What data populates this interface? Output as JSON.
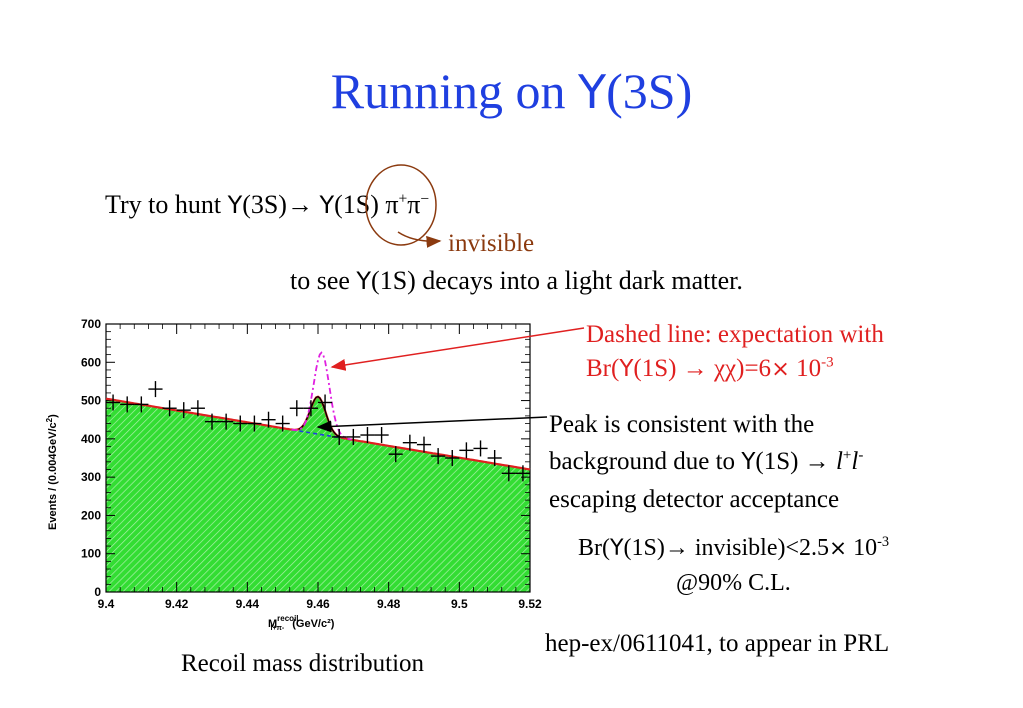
{
  "slide": {
    "title_prefix": "Running on ",
    "title_upsilon": "Υ",
    "title_suffix": "(3S)",
    "line1_a": "Try to hunt ",
    "line1_u1": "Υ",
    "line1_b": "(3S)→ ",
    "line1_u2": "Υ",
    "line1_c": "(1S) π",
    "line1_sup1": "+",
    "line1_d": "π",
    "line1_sup2": "−",
    "invisible": "invisible",
    "line2_a": "to see ",
    "line2_u": "Υ",
    "line2_b": "(1S) decays into a light dark matter.",
    "dashed_l1": "Dashed line: expectation with",
    "dashed_l2_a": "Br(",
    "dashed_l2_u": "Υ",
    "dashed_l2_b": "(1S) → χχ)=6",
    "dashed_l2_x": "×",
    "dashed_l2_c": " 10",
    "dashed_l2_exp": "-3",
    "peak_l1": "Peak is consistent with the",
    "peak_l2_a": "background due to ",
    "peak_l2_u": "Υ",
    "peak_l2_b": "(1S) → ",
    "peak_l2_l1": "l",
    "peak_l2_sup1": "+",
    "peak_l2_l2": "l",
    "peak_l2_sup2": "-",
    "peak_l3": "escaping detector acceptance",
    "br_a": "Br(",
    "br_u": "Υ",
    "br_b": "(1S)→ invisible)<2.5",
    "br_x": "×",
    "br_c": " 10",
    "br_exp": "-3",
    "br_cl": "@90% C.L.",
    "reference": "hep-ex/0611041, to appear in PRL",
    "caption": "Recoil mass distribution"
  },
  "colors": {
    "title": "#1f3fe0",
    "invisible": "#8b3a0f",
    "annotation_red": "#e02020",
    "fill_green": "#33dd33",
    "fit_red": "#e02020",
    "background_blue": "#2040e0",
    "expectation_magenta": "#e020e0"
  },
  "chart_data": {
    "type": "scatter",
    "xlabel": "M",
    "xlabel_sup": "recoil",
    "xlabel_sub": "l+π-",
    "xlabel_unit": "(GeV/c²)",
    "ylabel_a": "Events / (0.004GeV/c",
    "ylabel_sup": "2",
    "ylabel_b": ")",
    "xlim": [
      9.4,
      9.52
    ],
    "ylim": [
      0,
      700
    ],
    "x_ticks": [
      "9.4",
      "9.42",
      "9.44",
      "9.46",
      "9.48",
      "9.5",
      "9.52"
    ],
    "y_ticks": [
      "0",
      "100",
      "200",
      "300",
      "400",
      "500",
      "600",
      "700"
    ],
    "bin_width": 0.004,
    "series": [
      {
        "kind": "data",
        "x": [
          9.402,
          9.406,
          9.41,
          9.414,
          9.418,
          9.422,
          9.426,
          9.43,
          9.434,
          9.438,
          9.442,
          9.446,
          9.45,
          9.454,
          9.458,
          9.462,
          9.466,
          9.47,
          9.474,
          9.478,
          9.482,
          9.486,
          9.49,
          9.494,
          9.498,
          9.502,
          9.506,
          9.51,
          9.514,
          9.518
        ],
        "y": [
          495,
          490,
          490,
          530,
          480,
          475,
          480,
          445,
          445,
          440,
          440,
          450,
          440,
          480,
          480,
          495,
          405,
          405,
          410,
          410,
          360,
          390,
          385,
          355,
          350,
          370,
          375,
          350,
          310,
          310
        ]
      },
      {
        "kind": "fit_total",
        "peak_x": 9.46,
        "peak_y": 510
      },
      {
        "kind": "background",
        "y_at_xmin": 505,
        "y_at_xmax": 320
      },
      {
        "kind": "expectation",
        "peak_x": 9.461,
        "peak_y": 625
      }
    ]
  }
}
